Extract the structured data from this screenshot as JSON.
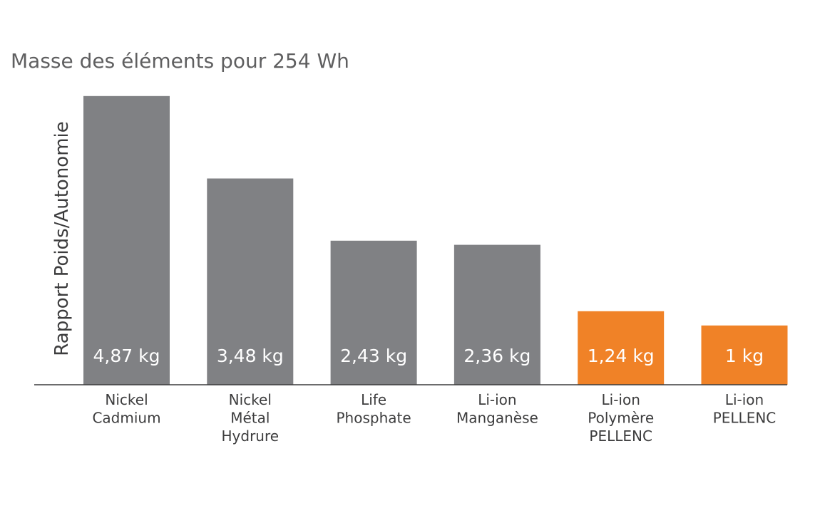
{
  "chart_data": {
    "type": "bar",
    "title": "Masse des éléments pour 254 Wh",
    "xlabel": "",
    "ylabel": "Rapport Poids/Autonomie",
    "unit": "kg",
    "ylim": [
      0,
      5
    ],
    "grid": false,
    "legend": "none",
    "categories": [
      [
        "Nickel",
        "Cadmium"
      ],
      [
        "Nickel",
        "Métal",
        "Hydrure"
      ],
      [
        "Life",
        "Phosphate"
      ],
      [
        "Li-ion",
        "Manganèse"
      ],
      [
        "Li-ion",
        "Polymère",
        "PELLENC"
      ],
      [
        "Li-ion",
        "PELLENC"
      ]
    ],
    "values": [
      4.87,
      3.48,
      2.43,
      2.36,
      1.24,
      1
    ],
    "value_labels": [
      "4,87 kg",
      "3,48 kg",
      "2,43 kg",
      "2,36 kg",
      "1,24 kg",
      "1 kg"
    ],
    "colors": [
      "#808184",
      "#808184",
      "#808184",
      "#808184",
      "#f08227",
      "#f08227"
    ],
    "axis_color": "#3c3c3d"
  }
}
